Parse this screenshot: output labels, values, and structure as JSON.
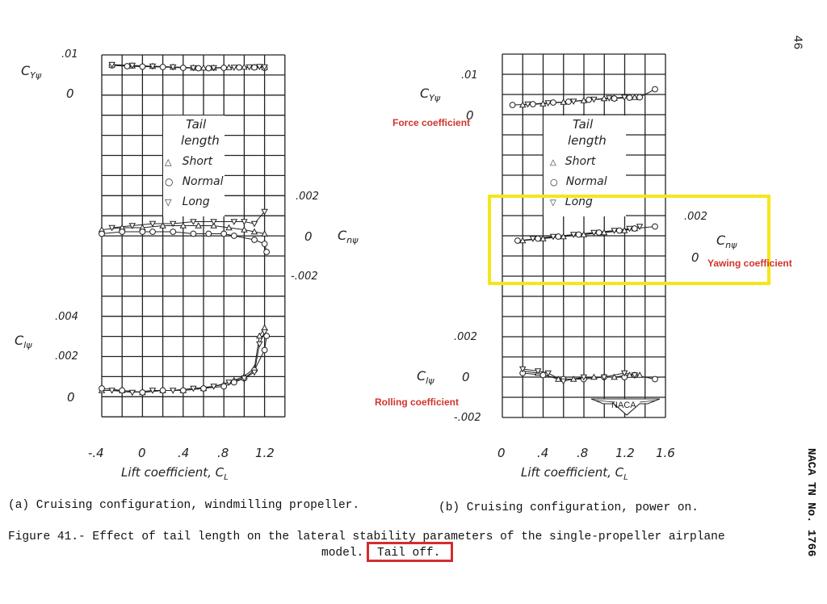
{
  "page": {
    "page_number": "46",
    "report_id": "NACA TN No. 1766"
  },
  "legend": {
    "title_line1": "Tail",
    "title_line2": "length",
    "items": [
      {
        "symbol": "triangle-up",
        "glyph": "△",
        "label": "Short"
      },
      {
        "symbol": "circle",
        "glyph": "○",
        "label": "Normal"
      },
      {
        "symbol": "triangle-down",
        "glyph": "▽",
        "label": "Long"
      }
    ]
  },
  "left_panel": {
    "caption": "(a) Cruising configuration, windmilling propeller.",
    "xlabel": "Lift coefficient, C",
    "xlabel_sub": "L",
    "x_ticks": [
      "-.4",
      "0",
      ".4",
      ".8",
      "1.2"
    ],
    "cy": {
      "label": "C",
      "sub": "Yψ",
      "ticks": [
        ".01",
        "0"
      ]
    },
    "cn": {
      "label": "C",
      "sub": "nψ",
      "ticks": [
        ".002",
        "0",
        "-.002"
      ]
    },
    "cl": {
      "label": "C",
      "sub": "lψ",
      "ticks": [
        ".004",
        ".002",
        "0"
      ]
    },
    "legend_tail_label": "Long"
  },
  "right_panel": {
    "caption": "(b) Cruising configuration, power on.",
    "xlabel": "Lift coefficient, C",
    "xlabel_sub": "L",
    "x_ticks": [
      "0",
      ".4",
      ".8",
      "1.2",
      "1.6"
    ],
    "cy": {
      "label": "C",
      "sub": "Yψ",
      "ticks": [
        ".01",
        "0"
      ]
    },
    "cn": {
      "label": "C",
      "sub": "nψ",
      "ticks": [
        ".002",
        "0"
      ]
    },
    "cl": {
      "label": "C",
      "sub": "lψ",
      "ticks": [
        ".002",
        "0",
        "-.002"
      ]
    },
    "logo": "NACA"
  },
  "annotations": {
    "force": "Force coefficient",
    "yawing": "Yawing coefficient",
    "rolling": "Rolling coefficient",
    "highlight_color": "#f5e61a",
    "note_color": "#d0342c"
  },
  "figure": {
    "caption_line1": "Figure 41.- Effect of tail length on the lateral stability parameters of the single-propeller airplane",
    "caption_line2_prefix": "model.",
    "caption_highlight": "Tail off."
  },
  "chart_data": [
    {
      "type": "scatter",
      "title": "(a) Cruising configuration, windmilling propeller — Cy_psi",
      "xlabel": "Lift coefficient, CL",
      "ylabel": "Cy_psi",
      "xlim": [
        -0.6,
        1.4
      ],
      "ylim": [
        0,
        0.01
      ],
      "grid": true,
      "series": [
        {
          "name": "Short",
          "x": [
            -0.3,
            -0.1,
            0.1,
            0.3,
            0.5,
            0.6,
            0.7,
            0.85,
            1.0,
            1.1,
            1.2
          ],
          "y": [
            0.0075,
            0.0073,
            0.0072,
            0.007,
            0.0068,
            0.0068,
            0.0068,
            0.0069,
            0.007,
            0.007,
            0.0069
          ]
        },
        {
          "name": "Normal",
          "x": [
            -0.3,
            -0.15,
            0.0,
            0.2,
            0.4,
            0.55,
            0.65,
            0.8,
            0.95,
            1.1,
            1.2
          ],
          "y": [
            0.0074,
            0.0072,
            0.0071,
            0.007,
            0.0068,
            0.0067,
            0.0067,
            0.0068,
            0.0069,
            0.0069,
            0.0068
          ]
        },
        {
          "name": "Long",
          "x": [
            -0.3,
            -0.1,
            0.1,
            0.3,
            0.5,
            0.7,
            0.9,
            1.05,
            1.15,
            1.2
          ],
          "y": [
            0.0076,
            0.0074,
            0.0072,
            0.007,
            0.0068,
            0.0068,
            0.0069,
            0.007,
            0.0071,
            0.007
          ]
        }
      ]
    },
    {
      "type": "scatter",
      "title": "(a) Cruising configuration, windmilling propeller — Cn_psi",
      "xlabel": "Lift coefficient, CL",
      "ylabel": "Cn_psi",
      "xlim": [
        -0.6,
        1.4
      ],
      "ylim": [
        -0.002,
        0.002
      ],
      "grid": true,
      "series": [
        {
          "name": "Short",
          "x": [
            -0.4,
            -0.2,
            0.0,
            0.2,
            0.4,
            0.55,
            0.7,
            0.85,
            1.0,
            1.1,
            1.2
          ],
          "y": [
            0.0003,
            0.0004,
            0.0004,
            0.0005,
            0.0005,
            0.0005,
            0.0005,
            0.0004,
            0.0003,
            0.0002,
            0.0001
          ]
        },
        {
          "name": "Normal",
          "x": [
            -0.4,
            -0.2,
            0.0,
            0.1,
            0.3,
            0.5,
            0.65,
            0.8,
            0.9,
            1.1,
            1.2,
            1.22
          ],
          "y": [
            0.0001,
            0.0002,
            0.0002,
            0.0002,
            0.0002,
            0.0001,
            0.0001,
            0.0001,
            0.0,
            -0.0002,
            -0.0004,
            -0.0008
          ]
        },
        {
          "name": "Long",
          "x": [
            -0.3,
            -0.1,
            0.1,
            0.3,
            0.5,
            0.7,
            0.9,
            1.0,
            1.1,
            1.2
          ],
          "y": [
            0.0004,
            0.0005,
            0.0006,
            0.0006,
            0.0007,
            0.0007,
            0.0007,
            0.0007,
            0.0006,
            0.0012
          ]
        }
      ]
    },
    {
      "type": "scatter",
      "title": "(a) Cruising configuration, windmilling propeller — Cl_psi",
      "xlabel": "Lift coefficient, CL",
      "ylabel": "Cl_psi",
      "xlim": [
        -0.6,
        1.4
      ],
      "ylim": [
        -0.001,
        0.005
      ],
      "grid": true,
      "series": [
        {
          "name": "Short",
          "x": [
            -0.4,
            -0.2,
            0.0,
            0.2,
            0.4,
            0.6,
            0.8,
            0.9,
            1.0,
            1.1,
            1.15,
            1.2
          ],
          "y": [
            0.0003,
            0.0003,
            0.0002,
            0.0003,
            0.0003,
            0.0004,
            0.0006,
            0.0008,
            0.001,
            0.0014,
            0.003,
            0.0034
          ]
        },
        {
          "name": "Normal",
          "x": [
            -0.4,
            -0.2,
            0.0,
            0.2,
            0.4,
            0.6,
            0.8,
            0.9,
            1.0,
            1.1,
            1.2,
            1.22
          ],
          "y": [
            0.0004,
            0.0003,
            0.0002,
            0.0003,
            0.0003,
            0.0004,
            0.0005,
            0.0007,
            0.0009,
            0.0013,
            0.0023,
            0.003
          ]
        },
        {
          "name": "Long",
          "x": [
            -0.3,
            -0.1,
            0.1,
            0.3,
            0.5,
            0.7,
            0.85,
            1.0,
            1.1,
            1.15,
            1.2
          ],
          "y": [
            0.0003,
            0.0002,
            0.0003,
            0.0003,
            0.0004,
            0.0005,
            0.0007,
            0.0009,
            0.0012,
            0.0026,
            0.0032
          ]
        }
      ]
    },
    {
      "type": "scatter",
      "title": "(b) Cruising configuration, power on — Cy_psi",
      "xlabel": "Lift coefficient, CL",
      "ylabel": "Cy_psi",
      "xlim": [
        0,
        1.6
      ],
      "ylim": [
        0,
        0.01
      ],
      "grid": true,
      "series": [
        {
          "name": "Short",
          "x": [
            0.2,
            0.4,
            0.6,
            0.8,
            1.0,
            1.1,
            1.3
          ],
          "y": [
            0.0026,
            0.0029,
            0.0033,
            0.0037,
            0.0042,
            0.0043,
            0.0045
          ]
        },
        {
          "name": "Normal",
          "x": [
            0.1,
            0.3,
            0.5,
            0.65,
            0.85,
            1.1,
            1.25,
            1.35,
            1.5
          ],
          "y": [
            0.0026,
            0.0028,
            0.0032,
            0.0034,
            0.0039,
            0.0042,
            0.0044,
            0.0045,
            0.0065
          ]
        },
        {
          "name": "Long",
          "x": [
            0.25,
            0.45,
            0.7,
            0.9,
            1.05,
            1.2
          ],
          "y": [
            0.0028,
            0.0031,
            0.0035,
            0.004,
            0.0043,
            0.0045
          ]
        }
      ]
    },
    {
      "type": "scatter",
      "title": "(b) Cruising configuration, power on — Cn_psi",
      "xlabel": "Lift coefficient, CL",
      "ylabel": "Cn_psi",
      "xlim": [
        0,
        1.6
      ],
      "ylim": [
        -0.002,
        0.002
      ],
      "grid": true,
      "series": [
        {
          "name": "Short",
          "x": [
            0.2,
            0.4,
            0.6,
            0.8,
            1.0,
            1.2,
            1.3
          ],
          "y": [
            0.0008,
            0.0009,
            0.001,
            0.0011,
            0.0012,
            0.0013,
            0.0014
          ]
        },
        {
          "name": "Normal",
          "x": [
            0.15,
            0.35,
            0.55,
            0.75,
            0.95,
            1.15,
            1.3,
            1.5
          ],
          "y": [
            0.0008,
            0.0009,
            0.001,
            0.0011,
            0.0012,
            0.0013,
            0.0014,
            0.0015
          ]
        },
        {
          "name": "Long",
          "x": [
            0.3,
            0.5,
            0.7,
            0.9,
            1.1,
            1.25,
            1.35
          ],
          "y": [
            0.0009,
            0.001,
            0.0011,
            0.0012,
            0.0013,
            0.0014,
            0.0015
          ]
        }
      ]
    },
    {
      "type": "scatter",
      "title": "(b) Cruising configuration, power on — Cl_psi",
      "xlabel": "Lift coefficient, CL",
      "ylabel": "Cl_psi",
      "xlim": [
        0,
        1.6
      ],
      "ylim": [
        -0.002,
        0.004
      ],
      "grid": true,
      "series": [
        {
          "name": "Short",
          "x": [
            0.2,
            0.35,
            0.55,
            0.7,
            0.9,
            1.1,
            1.25,
            1.35
          ],
          "y": [
            0.0003,
            0.0002,
            -0.0001,
            -0.0001,
            0.0,
            0.0,
            0.0001,
            0.0001
          ]
        },
        {
          "name": "Normal",
          "x": [
            0.2,
            0.4,
            0.6,
            0.8,
            1.0,
            1.2,
            1.3,
            1.5
          ],
          "y": [
            0.0002,
            0.0001,
            -0.0001,
            -0.0001,
            0.0,
            0.0,
            0.0001,
            -0.0001
          ]
        },
        {
          "name": "Long",
          "x": [
            0.2,
            0.35,
            0.45,
            0.6,
            0.8,
            1.0,
            1.2,
            1.3
          ],
          "y": [
            0.0004,
            0.0003,
            0.0002,
            -0.0002,
            0.0,
            0.0,
            0.0002,
            0.0001
          ]
        }
      ]
    }
  ]
}
